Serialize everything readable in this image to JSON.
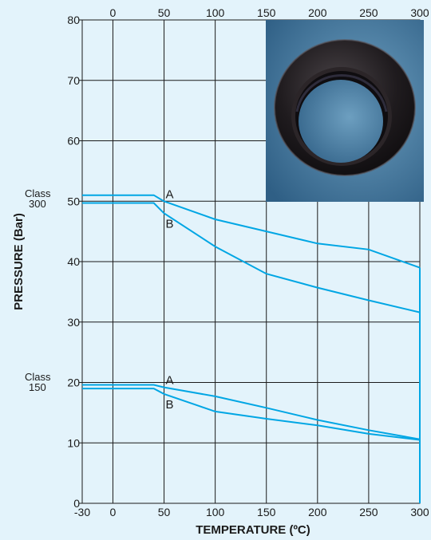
{
  "chart_data": {
    "type": "line",
    "xlabel": "TEMPERATURE (ºC)",
    "ylabel": "PRESSURE (Bar)",
    "xlim": [
      -30,
      300
    ],
    "ylim": [
      0,
      80
    ],
    "x_ticks_bottom": [
      "-30",
      "0",
      "50",
      "100",
      "150",
      "200",
      "250",
      "300"
    ],
    "x_ticks_top": [
      "0",
      "50",
      "100",
      "150",
      "200",
      "250",
      "300"
    ],
    "y_ticks": [
      "0",
      "10",
      "20",
      "30",
      "40",
      "50",
      "60",
      "70",
      "80"
    ],
    "grid": true,
    "class_labels": [
      {
        "line1": "Class",
        "line2": "300"
      },
      {
        "line1": "Class",
        "line2": "150"
      }
    ],
    "series": [
      {
        "name": "A",
        "x": [
          -30,
          40,
          50,
          100,
          150,
          200,
          250,
          300
        ],
        "y": [
          51,
          51,
          50,
          47,
          45,
          43,
          42,
          39
        ]
      },
      {
        "name": "B",
        "x": [
          -30,
          40,
          50,
          100,
          150,
          200,
          250,
          300
        ],
        "y": [
          49.7,
          49.7,
          48,
          42.5,
          38,
          35.7,
          33.6,
          31.6
        ]
      },
      {
        "name": "A",
        "x": [
          -30,
          40,
          50,
          100,
          150,
          200,
          250,
          300
        ],
        "y": [
          19.6,
          19.6,
          19.2,
          17.7,
          15.8,
          13.8,
          12.1,
          10.6
        ]
      },
      {
        "name": "B",
        "x": [
          -30,
          40,
          50,
          100,
          150,
          200,
          250,
          300
        ],
        "y": [
          19,
          19,
          18.1,
          15.2,
          14.0,
          12.9,
          11.5,
          10.5
        ]
      }
    ],
    "series_color": "#00a6e4",
    "inset": "photo of a black ring-shaped seat on blue background"
  }
}
